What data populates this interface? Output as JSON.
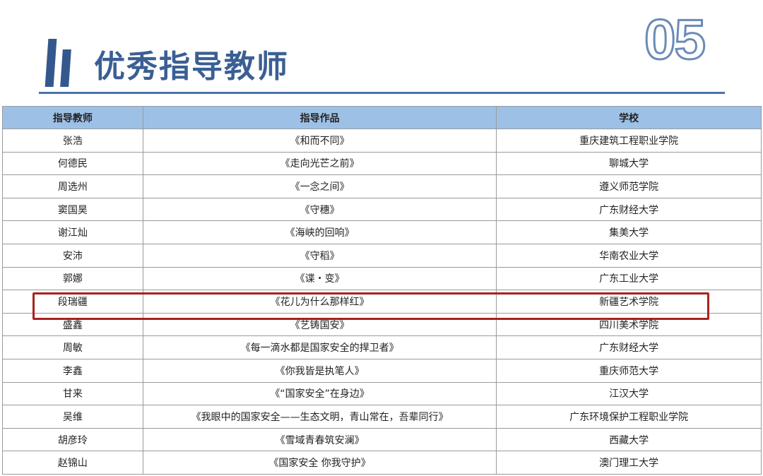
{
  "header": {
    "title": "优秀指导教师",
    "number": "05"
  },
  "table": {
    "columns": [
      "指导教师",
      "指导作品",
      "学校"
    ],
    "rows": [
      [
        "张浩",
        "《和而不同》",
        "重庆建筑工程职业学院"
      ],
      [
        "何德民",
        "《走向光芒之前》",
        "聊城大学"
      ],
      [
        "周选州",
        "《一念之间》",
        "遵义师范学院"
      ],
      [
        "窦国昊",
        "《守穗》",
        "广东财经大学"
      ],
      [
        "谢江灿",
        "《海峡的回响》",
        "集美大学"
      ],
      [
        "安沛",
        "《守稻》",
        "华南农业大学"
      ],
      [
        "郭娜",
        "《谍・变》",
        "广东工业大学"
      ],
      [
        "段瑞疆",
        "《花儿为什么那样红》",
        "新疆艺术学院"
      ],
      [
        "盛鑫",
        "《艺铸国安》",
        "四川美术学院"
      ],
      [
        "周敏",
        "《每一滴水都是国家安全的捍卫者》",
        "广东财经大学"
      ],
      [
        "李鑫",
        "《你我皆是执笔人》",
        "重庆师范大学"
      ],
      [
        "甘来",
        "《“国家安全”在身边》",
        "江汉大学"
      ],
      [
        "吴维",
        "《我眼中的国家安全——生态文明，青山常在，吾辈同行》",
        "广东环境保护工程职业学院"
      ],
      [
        "胡彦玲",
        "《雪域青春筑安澜》",
        "西藏大学"
      ],
      [
        "赵锦山",
        "《国家安全  你我守护》",
        "澳门理工大学"
      ]
    ],
    "highlighted_row": 7
  },
  "colors": {
    "accent": "#34588e",
    "header_bg": "#9dc1e6",
    "highlight": "#a8221e"
  }
}
